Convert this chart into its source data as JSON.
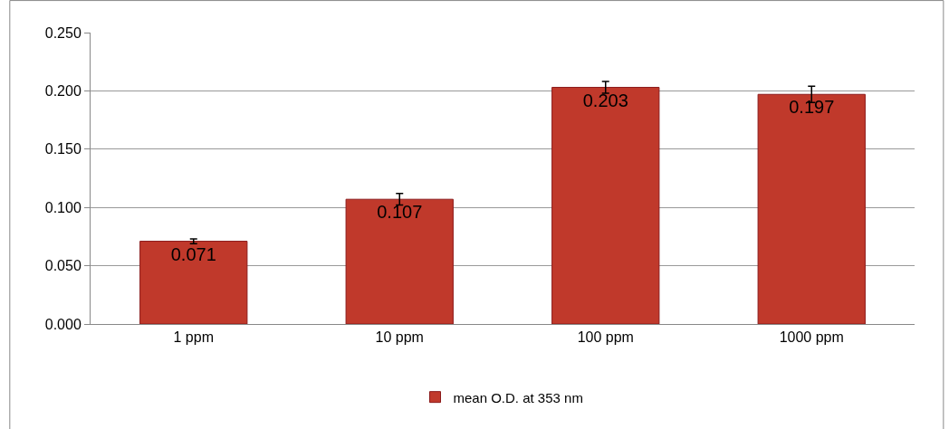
{
  "chart_data": {
    "type": "bar",
    "categories": [
      "1 ppm",
      "10 ppm",
      "100 ppm",
      "1000 ppm"
    ],
    "series": [
      {
        "name": "mean O.D. at 353 nm",
        "color": "#c0392b",
        "values": [
          0.071,
          0.107,
          0.203,
          0.197
        ],
        "errors": [
          0.002,
          0.005,
          0.005,
          0.007
        ]
      }
    ],
    "ylim": [
      0,
      0.25
    ],
    "yticks": [
      {
        "value": 0,
        "label": "0.000"
      },
      {
        "value": 0.05,
        "label": "0.050"
      },
      {
        "value": 0.1,
        "label": "0.100"
      },
      {
        "value": 0.15,
        "label": "0.150"
      },
      {
        "value": 0.2,
        "label": "0.200"
      },
      {
        "value": 0.25,
        "label": "0.250"
      }
    ],
    "grid": "y",
    "legend": "bottom",
    "data_labels": true
  }
}
